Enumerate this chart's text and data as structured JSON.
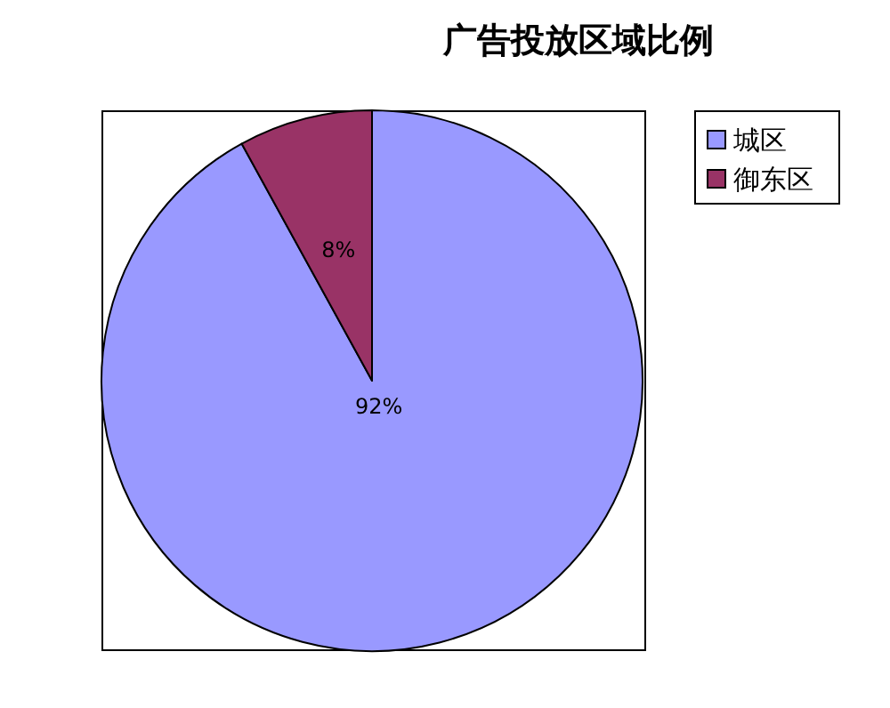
{
  "chart_data": {
    "type": "pie",
    "title": "广告投放区域比例",
    "categories": [
      "城区",
      "御东区"
    ],
    "values": [
      92,
      8
    ],
    "colors": [
      "#9999ff",
      "#993366"
    ],
    "value_labels": [
      "92%",
      "8%"
    ],
    "legend": "right"
  }
}
